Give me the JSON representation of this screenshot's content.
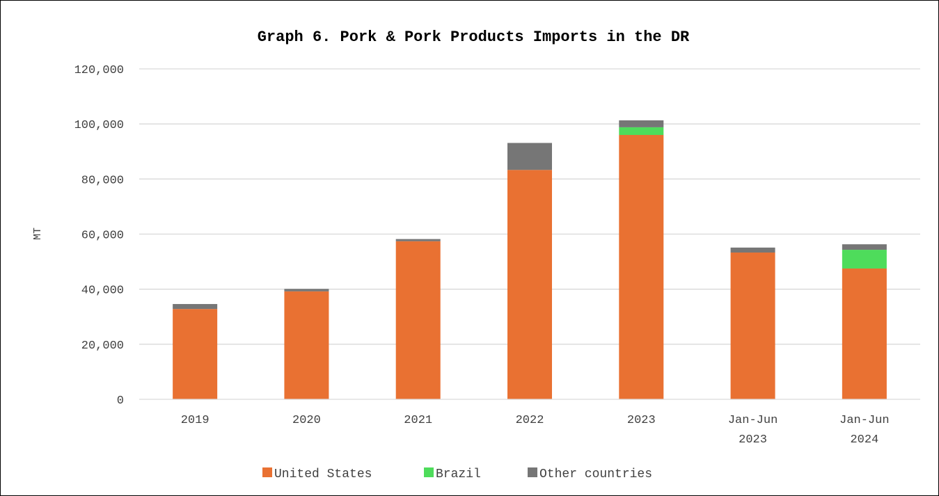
{
  "chart_data": {
    "type": "bar",
    "stacked": true,
    "title": "Graph 6. Pork & Pork Products Imports in the DR",
    "ylabel": "MT",
    "xlabel": "",
    "ylim": [
      0,
      120000
    ],
    "yticks": [
      "0",
      "20,000",
      "40,000",
      "60,000",
      "80,000",
      "100,000",
      "120,000"
    ],
    "ytick_values": [
      0,
      20000,
      40000,
      60000,
      80000,
      100000,
      120000
    ],
    "grid": true,
    "legend_position": "bottom",
    "categories": [
      [
        "2019"
      ],
      [
        "2020"
      ],
      [
        "2021"
      ],
      [
        "2022"
      ],
      [
        "2023"
      ],
      [
        "Jan-Jun",
        "2023"
      ],
      [
        "Jan-Jun",
        "2024"
      ]
    ],
    "series": [
      {
        "name": "United States",
        "color": "#E97132",
        "values": [
          32800,
          39200,
          57400,
          83300,
          96000,
          53300,
          47500
        ]
      },
      {
        "name": "Brazil",
        "color": "#4EDC5B",
        "values": [
          0,
          0,
          0,
          0,
          2800,
          0,
          6800
        ]
      },
      {
        "name": "Other countries",
        "color": "#767676",
        "values": [
          1800,
          900,
          800,
          9800,
          2500,
          1800,
          2000
        ]
      }
    ]
  }
}
